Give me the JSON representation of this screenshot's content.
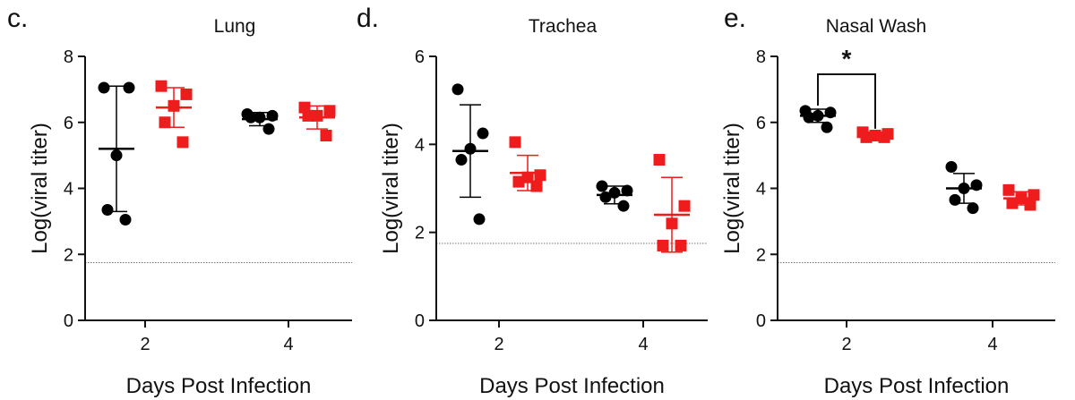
{
  "colors": {
    "group_a": "#000000",
    "group_b": "#ee1c1c",
    "axis": "#111111",
    "threshold": "#777777"
  },
  "chart_data": [
    {
      "type": "scatter",
      "panel_label": "c.",
      "title": "Lung",
      "xlabel": "Days Post Infection",
      "ylabel": "Log(viral titer)",
      "categories": [
        "2",
        "4"
      ],
      "ylim": [
        0,
        8
      ],
      "yticks": [
        0,
        2,
        4,
        6,
        8
      ],
      "limit_of_detection": 1.75,
      "series": [
        {
          "marker": "circle",
          "color": "#000000",
          "points": [
            [
              7.05,
              7.05,
              5.0,
              3.35,
              3.05
            ],
            [
              6.25,
              6.2,
              6.15,
              6.15,
              5.8
            ]
          ],
          "mean": [
            5.2,
            6.1
          ],
          "sd": [
            1.9,
            0.2
          ]
        },
        {
          "marker": "square",
          "color": "#ee1c1c",
          "points": [
            [
              7.1,
              6.85,
              6.5,
              6.0,
              5.4
            ],
            [
              6.45,
              6.35,
              6.2,
              6.2,
              5.6
            ]
          ],
          "mean": [
            6.45,
            6.15
          ],
          "sd": [
            0.6,
            0.35
          ]
        }
      ],
      "annotations": []
    },
    {
      "type": "scatter",
      "panel_label": "d.",
      "title": "Trachea",
      "xlabel": "Days Post Infection",
      "ylabel": "Log(viral titer)",
      "categories": [
        "2",
        "4"
      ],
      "ylim": [
        0,
        6
      ],
      "yticks": [
        0,
        2,
        4,
        6
      ],
      "limit_of_detection": 1.75,
      "series": [
        {
          "marker": "circle",
          "color": "#000000",
          "points": [
            [
              5.25,
              4.25,
              3.9,
              3.65,
              2.3
            ],
            [
              3.05,
              2.95,
              2.9,
              2.8,
              2.6
            ]
          ],
          "mean": [
            3.85,
            2.85
          ],
          "sd": [
            1.05,
            0.2
          ]
        },
        {
          "marker": "square",
          "color": "#ee1c1c",
          "points": [
            [
              4.05,
              3.3,
              3.25,
              3.15,
              3.05
            ],
            [
              3.65,
              2.6,
              2.2,
              1.7,
              1.7
            ]
          ],
          "mean": [
            3.35,
            2.4
          ],
          "sd": [
            0.4,
            0.85
          ]
        }
      ],
      "annotations": []
    },
    {
      "type": "scatter",
      "panel_label": "e.",
      "title": "Nasal Wash",
      "xlabel": "Days Post Infection",
      "ylabel": "Log(viral titer)",
      "categories": [
        "2",
        "4"
      ],
      "ylim": [
        0,
        8
      ],
      "yticks": [
        0,
        2,
        4,
        6,
        8
      ],
      "limit_of_detection": 1.75,
      "series": [
        {
          "marker": "circle",
          "color": "#000000",
          "points": [
            [
              6.35,
              6.3,
              6.2,
              6.15,
              5.85
            ],
            [
              4.65,
              4.1,
              4.0,
              3.65,
              3.4
            ]
          ],
          "mean": [
            6.2,
            4.0
          ],
          "sd": [
            0.2,
            0.45
          ]
        },
        {
          "marker": "square",
          "color": "#ee1c1c",
          "points": [
            [
              5.7,
              5.65,
              5.6,
              5.55,
              5.55
            ],
            [
              3.95,
              3.8,
              3.7,
              3.55,
              3.5
            ]
          ],
          "mean": [
            5.6,
            3.7
          ],
          "sd": [
            0.1,
            0.2
          ]
        }
      ],
      "annotations": [
        {
          "type": "significance",
          "category": "2",
          "label": "*"
        }
      ]
    }
  ]
}
